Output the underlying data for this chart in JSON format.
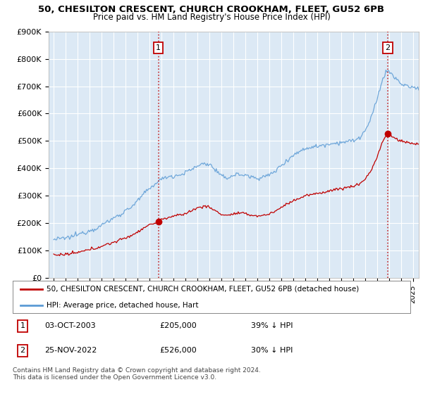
{
  "title": "50, CHESILTON CRESCENT, CHURCH CROOKHAM, FLEET, GU52 6PB",
  "subtitle": "Price paid vs. HM Land Registry's House Price Index (HPI)",
  "ylim": [
    0,
    900000
  ],
  "yticks": [
    0,
    100000,
    200000,
    300000,
    400000,
    500000,
    600000,
    700000,
    800000,
    900000
  ],
  "ytick_labels": [
    "£0",
    "£100K",
    "£200K",
    "£300K",
    "£400K",
    "£500K",
    "£600K",
    "£700K",
    "£800K",
    "£900K"
  ],
  "hpi_color": "#5b9bd5",
  "price_color": "#c00000",
  "vline_color": "#c00000",
  "plot_bg_color": "#dce9f5",
  "background_color": "#ffffff",
  "grid_color": "#ffffff",
  "sale1_date": 2003.75,
  "sale1_price": 205000,
  "sale1_label": "1",
  "sale2_date": 2022.9,
  "sale2_price": 526000,
  "sale2_label": "2",
  "legend_line1": "50, CHESILTON CRESCENT, CHURCH CROOKHAM, FLEET, GU52 6PB (detached house)",
  "legend_line2": "HPI: Average price, detached house, Hart",
  "note1_label": "1",
  "note1_date": "03-OCT-2003",
  "note1_price": "£205,000",
  "note1_hpi": "39% ↓ HPI",
  "note2_label": "2",
  "note2_date": "25-NOV-2022",
  "note2_price": "£526,000",
  "note2_hpi": "30% ↓ HPI",
  "footer": "Contains HM Land Registry data © Crown copyright and database right 2024.\nThis data is licensed under the Open Government Licence v3.0."
}
